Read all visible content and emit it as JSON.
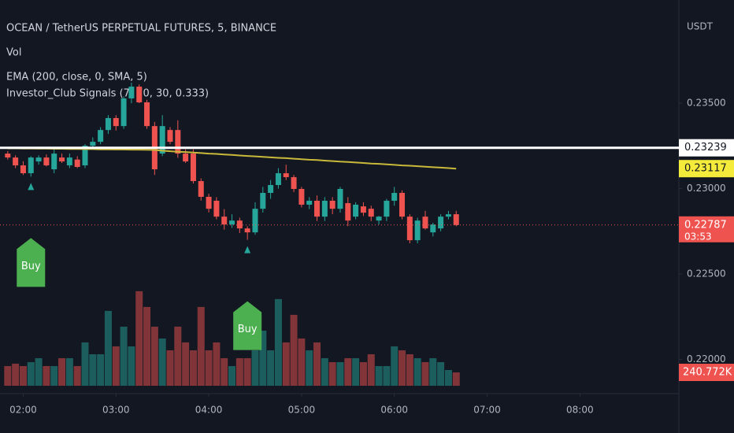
{
  "chart_data": {
    "type": "candlestick",
    "title": "OCEAN / TetherUS PERPETUAL FUTURES, 5, BINANCE",
    "legend_lines": [
      "Vol",
      "EMA (200, close, 0, SMA, 5)",
      "Investor_Club Signals (7, 70, 30, 0.333)"
    ],
    "currency": "USDT",
    "up_color": "#26a69a",
    "down_color": "#ef5350",
    "x": [
      110,
      115,
      120,
      125,
      130,
      135,
      140,
      145,
      150,
      155,
      160,
      165,
      170,
      175,
      180,
      185,
      190,
      195,
      200,
      205,
      210,
      215,
      220,
      225,
      230,
      235,
      240,
      245,
      250,
      255,
      260,
      265,
      270,
      275,
      280,
      285,
      290,
      295,
      300,
      305,
      310,
      315,
      320,
      325,
      330,
      335,
      340,
      345,
      350,
      355,
      360,
      365,
      370,
      375,
      380,
      385,
      390,
      395,
      400
    ],
    "open": [
      0.23205,
      0.23182,
      0.23136,
      0.2309,
      0.23159,
      0.23182,
      0.23113,
      0.23182,
      0.23136,
      0.2317,
      0.23136,
      0.23251,
      0.23274,
      0.23343,
      0.23413,
      0.23366,
      0.23528,
      0.23597,
      0.23505,
      0.23366,
      0.23205,
      0.23343,
      0.23343,
      0.23205,
      0.23205,
      0.23044,
      0.22952,
      0.22929,
      0.22836,
      0.2279,
      0.22813,
      0.22767,
      0.22744,
      0.22882,
      0.22975,
      0.23021,
      0.2309,
      0.23067,
      0.22998,
      0.22906,
      0.22929,
      0.22836,
      0.22929,
      0.22882,
      0.22915,
      0.22836,
      0.22896,
      0.22882,
      0.22813,
      0.22836,
      0.22929,
      0.22975,
      0.22836,
      0.22698,
      0.22836,
      0.22744,
      0.22767,
      0.22836,
      0.2285
    ],
    "high": [
      0.2322,
      0.23195,
      0.2316,
      0.2319,
      0.23195,
      0.232,
      0.2323,
      0.23205,
      0.23205,
      0.2319,
      0.2326,
      0.233,
      0.2336,
      0.2343,
      0.2343,
      0.2354,
      0.2362,
      0.2361,
      0.2352,
      0.2339,
      0.2343,
      0.2336,
      0.234,
      0.2323,
      0.2323,
      0.2306,
      0.2297,
      0.2295,
      0.2288,
      0.2285,
      0.2283,
      0.2278,
      0.2292,
      0.2301,
      0.2305,
      0.2312,
      0.2314,
      0.2308,
      0.2301,
      0.2295,
      0.2296,
      0.2295,
      0.2295,
      0.2301,
      0.2295,
      0.2292,
      0.2292,
      0.229,
      0.2284,
      0.2294,
      0.2301,
      0.2299,
      0.2285,
      0.2283,
      0.2287,
      0.228,
      0.2285,
      0.2287,
      0.2287
    ],
    "low": [
      0.2317,
      0.2312,
      0.2308,
      0.2307,
      0.2314,
      0.2313,
      0.2309,
      0.2315,
      0.2312,
      0.2312,
      0.2312,
      0.2323,
      0.2326,
      0.2332,
      0.2334,
      0.2335,
      0.235,
      0.235,
      0.2335,
      0.2308,
      0.2319,
      0.2326,
      0.2318,
      0.2315,
      0.2303,
      0.2293,
      0.2286,
      0.2282,
      0.2276,
      0.2277,
      0.2274,
      0.227,
      0.2273,
      0.2286,
      0.2294,
      0.23,
      0.2305,
      0.2298,
      0.2289,
      0.2288,
      0.2281,
      0.2281,
      0.2285,
      0.2286,
      0.2278,
      0.2282,
      0.2284,
      0.2281,
      0.2279,
      0.2281,
      0.229,
      0.2282,
      0.2268,
      0.2268,
      0.2276,
      0.2272,
      0.2275,
      0.2282,
      0.2278
    ],
    "close": [
      0.23182,
      0.23136,
      0.2309,
      0.23182,
      0.23182,
      0.23136,
      0.23205,
      0.23159,
      0.23182,
      0.23127,
      0.23251,
      0.23274,
      0.23343,
      0.23413,
      0.23366,
      0.23528,
      0.23597,
      0.23505,
      0.23366,
      0.23113,
      0.23366,
      0.23274,
      0.23205,
      0.23159,
      0.23044,
      0.22952,
      0.22882,
      0.22836,
      0.2279,
      0.22813,
      0.22767,
      0.22744,
      0.22882,
      0.22975,
      0.23021,
      0.2309,
      0.23067,
      0.22998,
      0.22906,
      0.22929,
      0.22836,
      0.22929,
      0.22882,
      0.22998,
      0.22813,
      0.22906,
      0.22859,
      0.22836,
      0.22836,
      0.22929,
      0.22975,
      0.22836,
      0.22698,
      0.22813,
      0.22767,
      0.2279,
      0.22836,
      0.2285,
      0.22787
    ],
    "volume": [
      355000,
      398000,
      355000,
      426000,
      497000,
      355000,
      355000,
      497000,
      497000,
      355000,
      781000,
      568000,
      568000,
      1349000,
      710000,
      1065000,
      710000,
      1704000,
      1420000,
      1065000,
      852000,
      639000,
      1065000,
      781000,
      639000,
      1420000,
      639000,
      781000,
      497000,
      355000,
      497000,
      497000,
      639000,
      994000,
      639000,
      1562000,
      781000,
      1278000,
      852000,
      639000,
      781000,
      497000,
      426000,
      426000,
      497000,
      497000,
      426000,
      568000,
      355000,
      355000,
      710000,
      639000,
      568000,
      497000,
      426000,
      497000,
      426000,
      284000,
      240772
    ],
    "volume_last_label": "240.772K",
    "ema": {
      "color": "#c9b93a",
      "values": [
        0.23236,
        0.23236,
        0.23235,
        0.23235,
        0.23234,
        0.23234,
        0.23233,
        0.23233,
        0.23232,
        0.23232,
        0.23231,
        0.23231,
        0.2323,
        0.2323,
        0.23229,
        0.23229,
        0.23228,
        0.23228,
        0.23227,
        0.23226,
        0.23222,
        0.23219,
        0.23216,
        0.23214,
        0.23211,
        0.23208,
        0.23205,
        0.23203,
        0.232,
        0.23197,
        0.23194,
        0.23191,
        0.23189,
        0.23186,
        0.23183,
        0.2318,
        0.23178,
        0.23175,
        0.23172,
        0.23169,
        0.23167,
        0.23164,
        0.23161,
        0.23158,
        0.23156,
        0.23153,
        0.2315,
        0.23147,
        0.23145,
        0.23142,
        0.23139,
        0.23136,
        0.23134,
        0.23131,
        0.23128,
        0.23125,
        0.23123,
        0.2312,
        0.23117
      ]
    },
    "price_line": {
      "value": 0.23239,
      "color": "#ffffff"
    },
    "countdown": "03:53",
    "signals": [
      {
        "x": 125,
        "label": "Buy",
        "color": "#4caf50"
      },
      {
        "x": 265,
        "label": "Buy",
        "color": "#4caf50"
      }
    ],
    "xlim": [
      105,
      544
    ],
    "xticks": [
      {
        "value": 120,
        "label": "02:00"
      },
      {
        "value": 180,
        "label": "03:00"
      },
      {
        "value": 240,
        "label": "04:00"
      },
      {
        "value": 300,
        "label": "05:00"
      },
      {
        "value": 360,
        "label": "06:00"
      },
      {
        "value": 420,
        "label": "07:00"
      },
      {
        "value": 480,
        "label": "08:00"
      }
    ],
    "ylim": [
      0.21846,
      0.24104
    ],
    "yticks": [
      {
        "value": 0.22,
        "label": "0.22000"
      },
      {
        "value": 0.225,
        "label": "0.22500"
      },
      {
        "value": 0.23,
        "label": "0.23000"
      },
      {
        "value": 0.235,
        "label": "0.23500"
      }
    ]
  }
}
